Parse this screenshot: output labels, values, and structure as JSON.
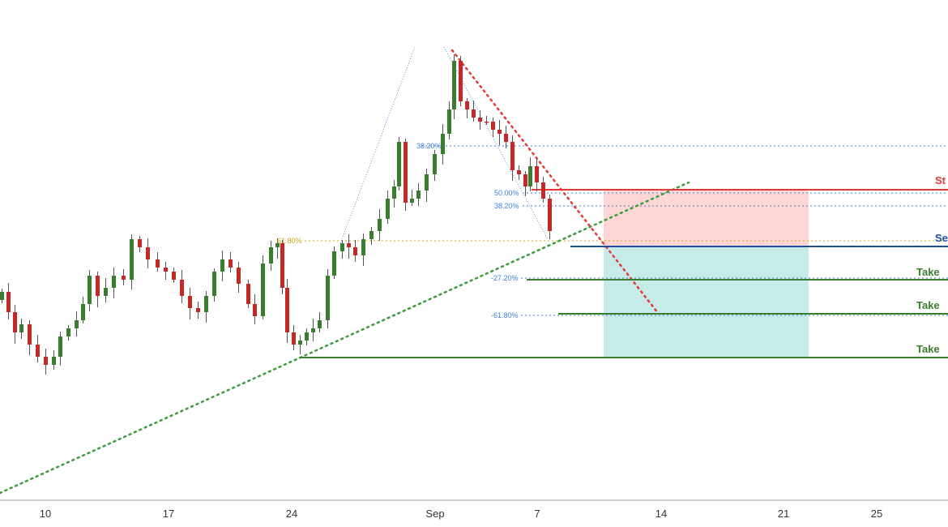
{
  "chart_data": {
    "type": "candlestick",
    "x_tick_labels": [
      "10",
      "17",
      "24",
      "Sep",
      "7",
      "14",
      "21",
      "25"
    ],
    "colors": {
      "up": "#3a7d2e",
      "down": "#c62828",
      "stop_loss": "#e53935",
      "sell_entry": "#1e4fa3",
      "take_profit": "#3a7d2e",
      "fib": "#3f7ed6",
      "fib_gold": "#d4a017",
      "risk_zone": "#ffd6d6",
      "reward_zone": "#c7ebe8",
      "trendline_up": "#3a9d3a",
      "trendline_down": "#e53935"
    },
    "level_labels": {
      "stop_loss": "St",
      "sell": "Se",
      "take_profit_1": "Take",
      "take_profit_2": "Take",
      "take_profit_3": "Take"
    },
    "fib_labels": {
      "gold_618": "61.80%",
      "top_382": "38.20%",
      "mid_500": "50.00%",
      "mid_382": "38.20%",
      "ext_272": "-27.20%",
      "ext_618": "-61.80%"
    }
  }
}
